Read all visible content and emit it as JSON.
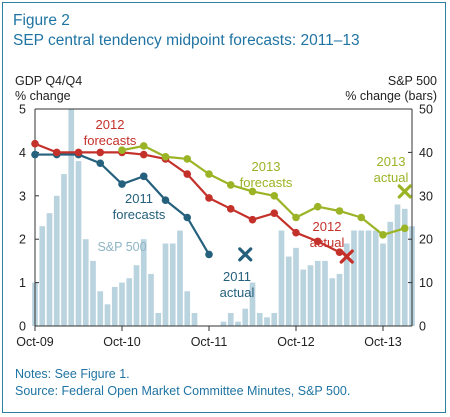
{
  "figure": {
    "number": "Figure 2",
    "title": "SEP central tendency midpoint forecasts: 2011–13",
    "notes_line1": "Notes: See Figure 1.",
    "notes_line2": "Source: Federal Open Market Committee Minutes, S&P 500."
  },
  "colors": {
    "frame": "#2f7fa3",
    "title_text": "#1f74a3",
    "bars": "#b9d3df",
    "series_2011": "#25607c",
    "series_2012": "#c4312b",
    "series_2013": "#9ab425",
    "sp500_label": "#8fb4c6"
  },
  "chart_data": {
    "type": "line",
    "left_axis": {
      "label_line1": "GDP Q4/Q4",
      "label_line2": "% change",
      "ylim": [
        0,
        5
      ],
      "ticks": [
        "0",
        "1",
        "2",
        "3",
        "4",
        "5"
      ]
    },
    "right_axis": {
      "label_line1": "S&P 500",
      "label_line2": "% change (bars)",
      "ylim": [
        0,
        50
      ],
      "ticks": [
        "0",
        "10",
        "20",
        "30",
        "40",
        "50"
      ]
    },
    "x_ticks": [
      {
        "label": "Oct-09",
        "t": 0
      },
      {
        "label": "Oct-10",
        "t": 12
      },
      {
        "label": "Oct-11",
        "t": 24
      },
      {
        "label": "Oct-12",
        "t": 36
      },
      {
        "label": "Oct-13",
        "t": 48
      }
    ],
    "xlim": [
      0,
      52
    ],
    "grid": false,
    "bars": {
      "name": "S&P 500",
      "t": [
        0,
        1,
        2,
        3,
        4,
        5,
        6,
        7,
        8,
        9,
        10,
        11,
        12,
        13,
        14,
        15,
        16,
        17,
        18,
        19,
        20,
        21,
        22,
        23,
        24,
        25,
        26,
        27,
        28,
        29,
        30,
        31,
        32,
        33,
        34,
        35,
        36,
        37,
        38,
        39,
        40,
        41,
        42,
        43,
        44,
        45,
        46,
        47,
        48,
        49,
        50,
        51,
        52
      ],
      "values": [
        10,
        23,
        26,
        30,
        35,
        50,
        38,
        20,
        15,
        8,
        5,
        9,
        10,
        11,
        14,
        20,
        12,
        3,
        19,
        19,
        22,
        8,
        3,
        0,
        0,
        0,
        1,
        3,
        1,
        4,
        10,
        3,
        2,
        3,
        22,
        16,
        18,
        13,
        14,
        15,
        15,
        11,
        12,
        19,
        22,
        22,
        22,
        22,
        19,
        24,
        28,
        27,
        23
      ]
    },
    "series": [
      {
        "name": "2011 forecasts",
        "label_line1": "2011",
        "label_line2": "forecasts",
        "t": [
          0,
          3,
          6,
          9,
          12,
          15,
          18,
          21
        ],
        "values": [
          3.95,
          3.95,
          3.95,
          3.75,
          3.27,
          3.45,
          2.9,
          2.5
        ],
        "end_t": 24,
        "end_value": 1.65
      },
      {
        "name": "2012 forecasts",
        "label_line1": "2012",
        "label_line2": "forecasts",
        "t": [
          0,
          3,
          6,
          9,
          12,
          15,
          18,
          21,
          24,
          27,
          30,
          33,
          36,
          39
        ],
        "values": [
          4.2,
          4.0,
          4.0,
          4.0,
          4.0,
          3.95,
          3.85,
          3.5,
          2.95,
          2.7,
          2.45,
          2.6,
          2.15,
          1.95
        ],
        "end_t": 42,
        "end_value": 1.7
      },
      {
        "name": "2013 forecasts",
        "label_line1": "2013",
        "label_line2": "forecasts",
        "t": [
          12,
          15,
          18,
          21,
          24,
          27,
          30,
          33,
          36,
          39,
          42,
          45,
          48,
          51
        ],
        "values": [
          4.05,
          4.15,
          3.9,
          3.85,
          3.5,
          3.25,
          3.1,
          3.0,
          2.5,
          2.75,
          2.65,
          2.5,
          2.1,
          2.25
        ]
      }
    ],
    "actuals": [
      {
        "label_line1": "2011",
        "label_line2": "actual",
        "t": 29,
        "value": 1.65
      },
      {
        "label_line1": "2012",
        "label_line2": "actual",
        "t": 43,
        "value": 1.6
      },
      {
        "label_line1": "2013",
        "label_line2": "actual",
        "t": 51,
        "value": 3.1
      }
    ]
  }
}
